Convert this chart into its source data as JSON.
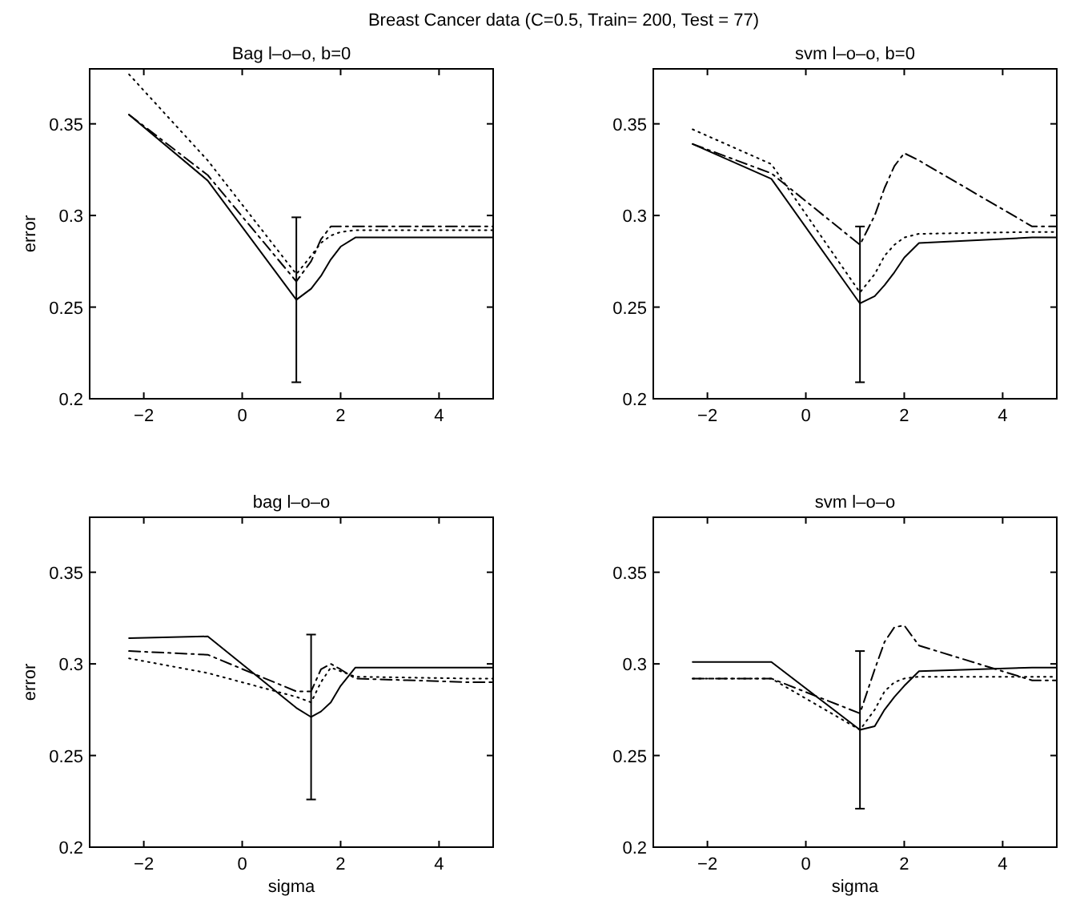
{
  "chart_data": [
    {
      "type": "line",
      "title": "Breast Cancer data (C=0.5, Train= 200, Test = 77)",
      "subtitle": "Bag l–o–o, b=0",
      "ylabel": "error",
      "x": [
        -2.3,
        -0.7,
        1.1,
        1.4,
        1.6,
        1.8,
        2.0,
        2.3,
        4.6,
        5.1
      ],
      "xlim": [
        -3.1,
        5.1
      ],
      "ylim": [
        0.2,
        0.38
      ],
      "xticks": [
        -2,
        0,
        2,
        4
      ],
      "yticks": [
        0.2,
        0.25,
        0.3,
        0.35
      ],
      "grid": false,
      "marker": "none",
      "series": [
        {
          "color": "#000000",
          "line_style": "solid",
          "values": [
            0.355,
            0.319,
            0.254,
            0.26,
            0.267,
            0.276,
            0.283,
            0.288,
            0.288,
            0.288
          ],
          "errors": [
            null,
            null,
            [
              0.209,
              0.299
            ],
            null,
            null,
            null,
            null,
            null,
            null,
            null
          ]
        },
        {
          "color": "#000000",
          "line_style": "dashed",
          "values": [
            0.355,
            0.322,
            0.264,
            0.275,
            0.287,
            0.294,
            0.294,
            0.294,
            0.294,
            0.294
          ]
        },
        {
          "color": "#000000",
          "line_style": "dotted",
          "values": [
            0.377,
            0.33,
            0.268,
            0.278,
            0.285,
            0.289,
            0.291,
            0.292,
            0.292,
            0.292
          ]
        }
      ]
    },
    {
      "type": "line",
      "title": "svm l–o–o, b=0",
      "x": [
        -2.3,
        -0.7,
        1.1,
        1.4,
        1.6,
        1.8,
        2.0,
        2.3,
        4.6,
        5.1
      ],
      "xlim": [
        -3.1,
        5.1
      ],
      "ylim": [
        0.2,
        0.38
      ],
      "xticks": [
        -2,
        0,
        2,
        4
      ],
      "yticks": [
        0.2,
        0.25,
        0.3,
        0.35
      ],
      "grid": false,
      "marker": "none",
      "series": [
        {
          "color": "#000000",
          "line_style": "solid",
          "values": [
            0.339,
            0.32,
            0.252,
            0.256,
            0.262,
            0.269,
            0.277,
            0.285,
            0.288,
            0.288
          ],
          "errors": [
            null,
            null,
            [
              0.209,
              0.294
            ],
            null,
            null,
            null,
            null,
            null,
            null,
            null
          ]
        },
        {
          "color": "#000000",
          "line_style": "dashed",
          "values": [
            0.339,
            0.323,
            0.284,
            0.3,
            0.315,
            0.327,
            0.334,
            0.33,
            0.294,
            0.294
          ]
        },
        {
          "color": "#000000",
          "line_style": "dotted",
          "values": [
            0.347,
            0.328,
            0.258,
            0.268,
            0.278,
            0.284,
            0.288,
            0.29,
            0.291,
            0.291
          ]
        }
      ]
    },
    {
      "type": "line",
      "title": "bag l–o–o",
      "xlabel": "sigma",
      "ylabel": "error",
      "x": [
        -2.3,
        -0.7,
        1.1,
        1.4,
        1.6,
        1.8,
        2.0,
        2.3,
        4.6,
        5.1
      ],
      "xlim": [
        -3.1,
        5.1
      ],
      "ylim": [
        0.2,
        0.38
      ],
      "xticks": [
        -2,
        0,
        2,
        4
      ],
      "yticks": [
        0.2,
        0.25,
        0.3,
        0.35
      ],
      "grid": false,
      "marker": "none",
      "series": [
        {
          "color": "#000000",
          "line_style": "solid",
          "values": [
            0.314,
            0.315,
            0.276,
            0.271,
            0.274,
            0.279,
            0.288,
            0.298,
            0.298,
            0.298
          ],
          "errors": [
            null,
            null,
            null,
            [
              0.226,
              0.316
            ],
            null,
            null,
            null,
            null,
            null,
            null
          ]
        },
        {
          "color": "#000000",
          "line_style": "dashed",
          "values": [
            0.307,
            0.305,
            0.285,
            0.285,
            0.297,
            0.3,
            0.297,
            0.292,
            0.29,
            0.29
          ]
        },
        {
          "color": "#000000",
          "line_style": "dotted",
          "values": [
            0.303,
            0.295,
            0.282,
            0.279,
            0.29,
            0.298,
            0.296,
            0.293,
            0.292,
            0.292
          ]
        }
      ]
    },
    {
      "type": "line",
      "title": "svm l–o–o",
      "xlabel": "sigma",
      "x": [
        -2.3,
        -0.7,
        1.1,
        1.4,
        1.6,
        1.8,
        2.0,
        2.3,
        4.6,
        5.1
      ],
      "xlim": [
        -3.1,
        5.1
      ],
      "ylim": [
        0.2,
        0.38
      ],
      "xticks": [
        -2,
        0,
        2,
        4
      ],
      "yticks": [
        0.2,
        0.25,
        0.3,
        0.35
      ],
      "grid": false,
      "marker": "none",
      "series": [
        {
          "color": "#000000",
          "line_style": "solid",
          "values": [
            0.301,
            0.301,
            0.264,
            0.266,
            0.275,
            0.282,
            0.288,
            0.296,
            0.298,
            0.298
          ],
          "errors": [
            null,
            null,
            [
              0.221,
              0.307
            ],
            null,
            null,
            null,
            null,
            null,
            null,
            null
          ]
        },
        {
          "color": "#000000",
          "line_style": "dashed",
          "values": [
            0.292,
            0.292,
            0.273,
            0.297,
            0.312,
            0.32,
            0.321,
            0.31,
            0.291,
            0.291
          ]
        },
        {
          "color": "#000000",
          "line_style": "dotted",
          "values": [
            0.292,
            0.292,
            0.264,
            0.275,
            0.285,
            0.29,
            0.292,
            0.293,
            0.293,
            0.293
          ]
        }
      ]
    }
  ]
}
